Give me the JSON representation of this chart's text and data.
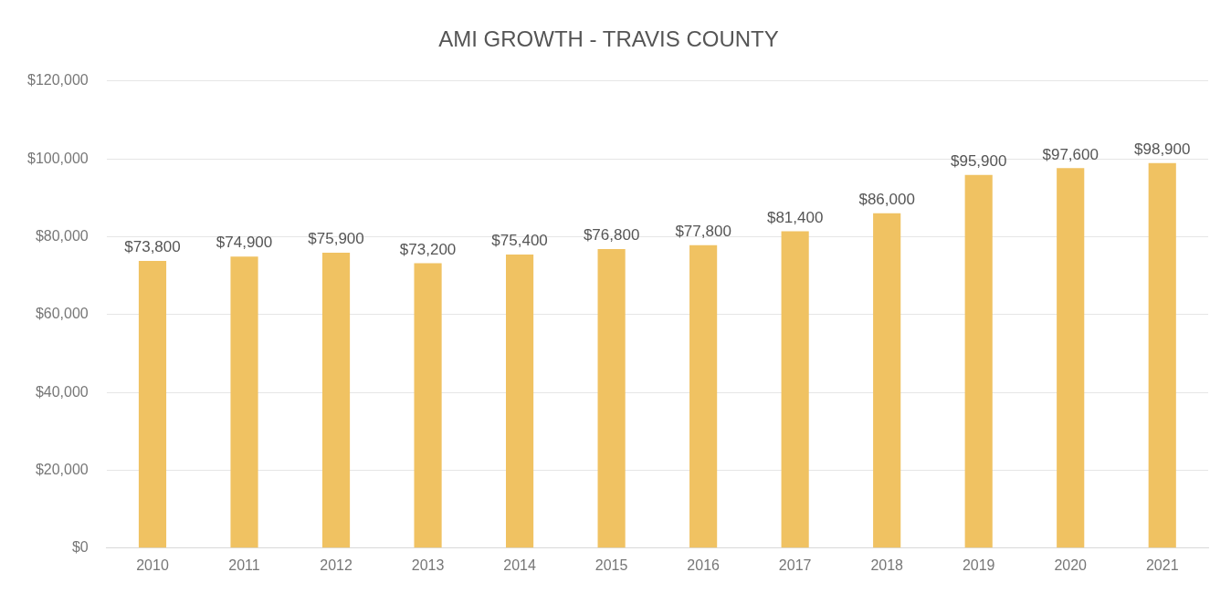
{
  "chart_data": {
    "type": "bar",
    "title": "AMI GROWTH - TRAVIS COUNTY",
    "categories": [
      "2010",
      "2011",
      "2012",
      "2013",
      "2014",
      "2015",
      "2016",
      "2017",
      "2018",
      "2019",
      "2020",
      "2021"
    ],
    "values": [
      73800,
      74900,
      75900,
      73200,
      75400,
      76800,
      77800,
      81400,
      86000,
      95900,
      97600,
      98900
    ],
    "value_labels": [
      "$73,800",
      "$74,900",
      "$75,900",
      "$73,200",
      "$75,400",
      "$76,800",
      "$77,800",
      "$81,400",
      "$86,000",
      "$95,900",
      "$97,600",
      "$98,900"
    ],
    "color": "#f0c262",
    "ylim": [
      0,
      120000
    ],
    "yticks": [
      {
        "value": 0,
        "label": "$0"
      },
      {
        "value": 20000,
        "label": "$20,000"
      },
      {
        "value": 40000,
        "label": "$40,000"
      },
      {
        "value": 60000,
        "label": "$60,000"
      },
      {
        "value": 80000,
        "label": "$80,000"
      },
      {
        "value": 100000,
        "label": "$100,000"
      },
      {
        "value": 120000,
        "label": "$120,000"
      }
    ],
    "grid": "y",
    "legend": false
  }
}
